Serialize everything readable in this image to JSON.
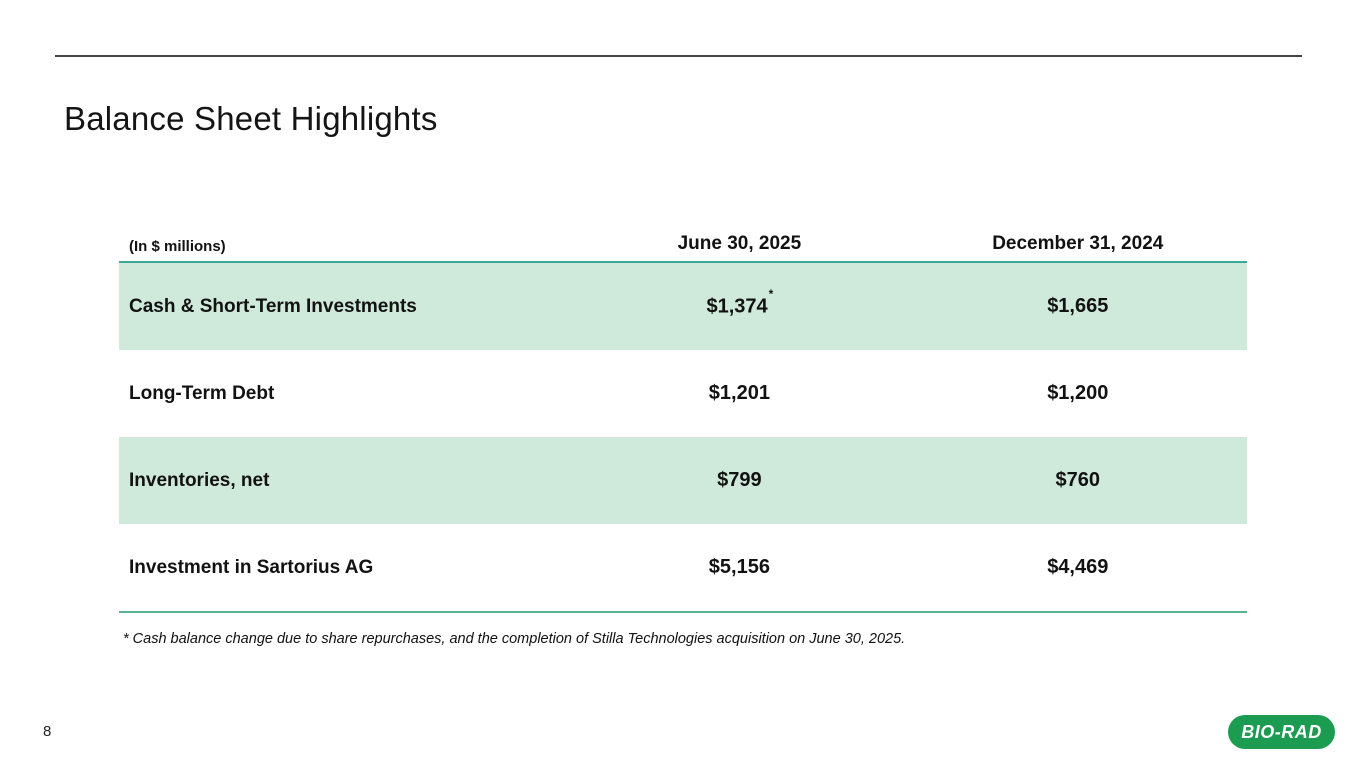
{
  "slide": {
    "title": "Balance Sheet Highlights",
    "page_number": "8",
    "footnote": "* Cash balance change due to share repurchases, and the completion of Stilla Technologies acquisition on June 30, 2025.",
    "logo_text": "BIO-RAD"
  },
  "table": {
    "unit_label": "(In $ millions)",
    "columns": [
      "June 30, 2025",
      "December 31, 2024"
    ],
    "rows": [
      {
        "label": "Cash & Short-Term Investments",
        "jun30_2025": "$1,374",
        "marker": "*",
        "dec31_2024": "$1,665"
      },
      {
        "label": "Long-Term Debt",
        "jun30_2025": "$1,201",
        "dec31_2024": "$1,200"
      },
      {
        "label": "Inventories, net",
        "jun30_2025": "$799",
        "dec31_2024": "$760"
      },
      {
        "label": "Investment in Sartorius AG",
        "jun30_2025": "$5,156",
        "dec31_2024": "$4,469"
      }
    ]
  },
  "colors": {
    "top_rule": "#434343",
    "rule_teal": "#3BA795",
    "bottom_rule": "#57B48E",
    "row_shade": "#CFE9DB",
    "logo_green": "#1B9C50"
  }
}
